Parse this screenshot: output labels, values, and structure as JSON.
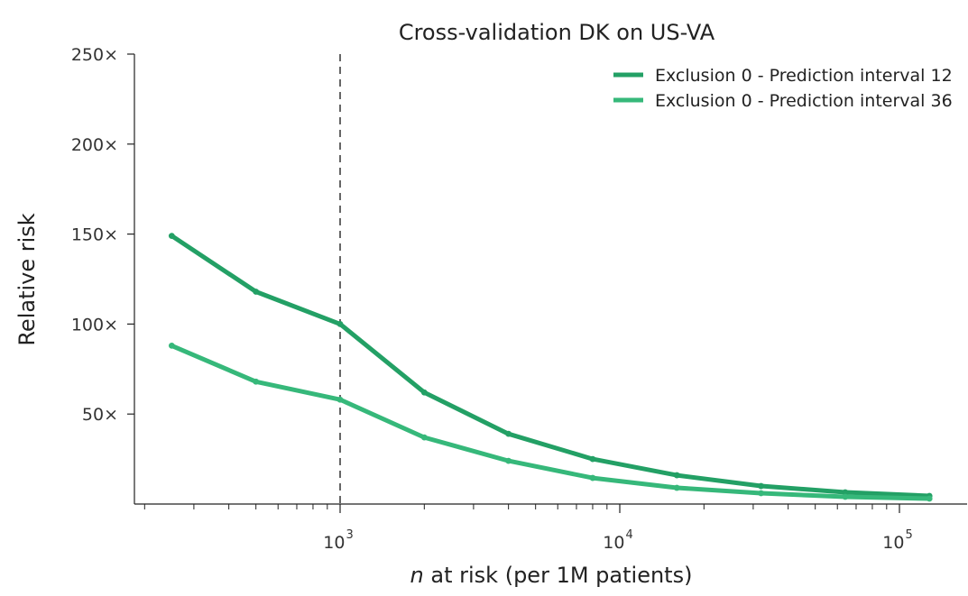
{
  "chart_data": {
    "type": "line",
    "title": "Cross-validation DK on US-VA",
    "xlabel_italic": "n",
    "xlabel_rest": " at risk (per 1M patients)",
    "ylabel": "Relative risk",
    "xscale": "log",
    "xlim": [
      200,
      170000
    ],
    "ylim": [
      0,
      250
    ],
    "grid": false,
    "legend_position": "top-right",
    "x_ticks": [
      {
        "value": 1000,
        "base": "10",
        "exponent": "3"
      },
      {
        "value": 10000,
        "base": "10",
        "exponent": "4"
      },
      {
        "value": 100000,
        "base": "10",
        "exponent": "5"
      }
    ],
    "y_ticks": [
      {
        "value": 50,
        "label": "50×"
      },
      {
        "value": 100,
        "label": "100×"
      },
      {
        "value": 150,
        "label": "150×"
      },
      {
        "value": 200,
        "label": "200×"
      },
      {
        "value": 250,
        "label": "250×"
      }
    ],
    "reference_line_x": 1000,
    "x": [
      250,
      500,
      1000,
      2000,
      4000,
      8000,
      16000,
      32000,
      64000,
      128000
    ],
    "series": [
      {
        "name": "Exclusion 0 - Prediction interval 12",
        "color": "#23a065",
        "values": [
          149,
          118,
          100,
          62,
          39,
          25,
          16,
          10,
          6.5,
          4.5
        ]
      },
      {
        "name": "Exclusion 0 - Prediction interval 36",
        "color": "#36b87a",
        "values": [
          88,
          68,
          58,
          37,
          24,
          14.5,
          9,
          6,
          4,
          3
        ]
      }
    ]
  }
}
